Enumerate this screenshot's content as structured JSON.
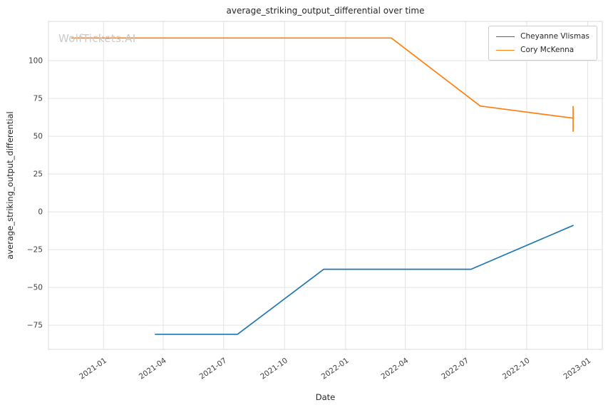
{
  "chart_data": {
    "type": "line",
    "title": "average_striking_output_differential over time",
    "xlabel": "Date",
    "ylabel": "average_striking_output_differential",
    "watermark": "WolfTickets.AI",
    "grid": true,
    "legend_position": "upper right",
    "grid_color": "#e3e3e3",
    "frame_color": "#d8d8d8",
    "x_ticks": [
      "2021-01",
      "2021-04",
      "2021-07",
      "2021-10",
      "2022-01",
      "2022-04",
      "2022-07",
      "2022-10",
      "2023-01"
    ],
    "y_ticks": [
      -75,
      -50,
      -25,
      0,
      25,
      50,
      75,
      100
    ],
    "xlim": [
      "2020-10-10",
      "2023-01-23"
    ],
    "ylim": [
      -91,
      126
    ],
    "series": [
      {
        "name": "Cheyanne Vlismas",
        "color": "#1f77b4",
        "points": [
          {
            "x": "2021-03-20",
            "y": -81
          },
          {
            "x": "2021-07-22",
            "y": -81
          },
          {
            "x": "2021-11-29",
            "y": -38
          },
          {
            "x": "2022-07-09",
            "y": -38
          },
          {
            "x": "2022-12-10",
            "y": -9
          }
        ]
      },
      {
        "name": "Cory McKenna",
        "color": "#ff7f0e",
        "points": [
          {
            "x": "2020-11-14",
            "y": 115
          },
          {
            "x": "2022-03-11",
            "y": 115
          },
          {
            "x": "2022-07-23",
            "y": 70
          },
          {
            "x": "2022-12-10",
            "y": 62
          }
        ],
        "error_bar": {
          "x": "2022-12-10",
          "y_low": 53,
          "y_high": 70
        }
      }
    ]
  }
}
